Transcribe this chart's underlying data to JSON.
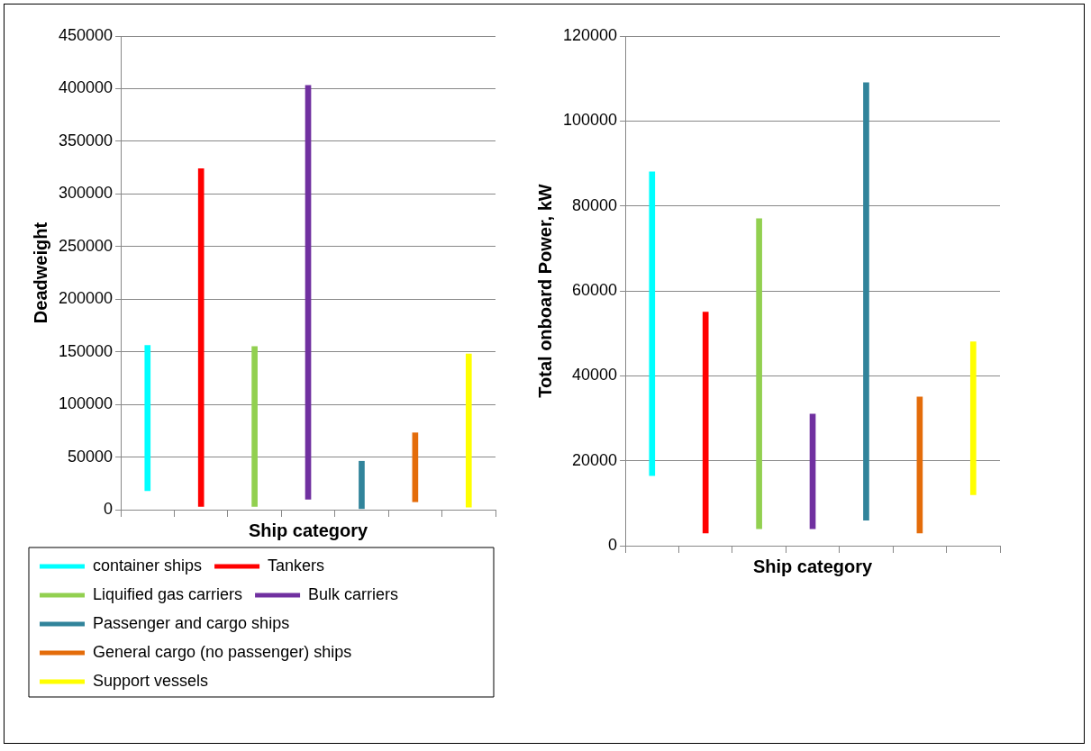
{
  "chart_data": [
    {
      "type": "bar",
      "stacked": true,
      "xlabel": "Ship category",
      "ylabel": "Deadweight",
      "ylim": [
        0,
        450000
      ],
      "yticks": [
        0,
        50000,
        100000,
        150000,
        200000,
        250000,
        300000,
        350000,
        400000,
        450000
      ],
      "grid": "y",
      "tick_labels": "y",
      "legend": "bottom",
      "categories": [
        null,
        null,
        null,
        null,
        null,
        null,
        null
      ],
      "series": [
        {
          "name": "container ships",
          "color": "#00ffff",
          "base": [
            18000,
            null,
            null,
            null,
            null,
            null,
            null
          ],
          "values": [
            138000,
            null,
            null,
            null,
            null,
            null,
            null
          ]
        },
        {
          "name": "Tankers",
          "color": "#ff0000",
          "base": [
            null,
            3000,
            null,
            null,
            null,
            null,
            null
          ],
          "values": [
            null,
            321000,
            null,
            null,
            null,
            null,
            null
          ]
        },
        {
          "name": "Liquified gas carriers",
          "color": "#92d050",
          "base": [
            null,
            null,
            3000,
            null,
            null,
            null,
            null
          ],
          "values": [
            null,
            null,
            152000,
            null,
            null,
            null,
            null
          ]
        },
        {
          "name": "Bulk carriers",
          "color": "#7030a0",
          "base": [
            null,
            null,
            null,
            10000,
            null,
            null,
            null
          ],
          "values": [
            null,
            null,
            null,
            393000,
            null,
            null,
            null
          ]
        },
        {
          "name": "Passenger and cargo ships",
          "color": "#31849b",
          "base": [
            null,
            null,
            null,
            null,
            1000,
            null,
            null
          ],
          "values": [
            null,
            null,
            null,
            null,
            45000,
            null,
            null
          ]
        },
        {
          "name": "General cargo (no passenger) ships",
          "color": "#e46c0a",
          "base": [
            null,
            null,
            null,
            null,
            null,
            7500,
            null
          ],
          "values": [
            null,
            null,
            null,
            null,
            null,
            65500,
            null
          ]
        },
        {
          "name": "Support vessels",
          "color": "#ffff00",
          "base": [
            null,
            null,
            null,
            null,
            null,
            null,
            2500
          ],
          "values": [
            null,
            null,
            null,
            null,
            null,
            null,
            145500
          ]
        }
      ]
    },
    {
      "type": "bar",
      "stacked": true,
      "xlabel": "Ship category",
      "ylabel": "Total onboard Power, kW",
      "ylim": [
        0,
        120000
      ],
      "yticks": [
        0,
        20000,
        40000,
        60000,
        80000,
        100000,
        120000
      ],
      "grid": "y",
      "tick_labels": "y",
      "categories": [
        null,
        null,
        null,
        null,
        null,
        null,
        null
      ],
      "series": [
        {
          "color": "#00ffff",
          "base": [
            16500,
            null,
            null,
            null,
            null,
            null,
            null
          ],
          "values": [
            71500,
            null,
            null,
            null,
            null,
            null,
            null
          ]
        },
        {
          "color": "#ff0000",
          "base": [
            null,
            3000,
            null,
            null,
            null,
            null,
            null
          ],
          "values": [
            null,
            52000,
            null,
            null,
            null,
            null,
            null
          ]
        },
        {
          "color": "#92d050",
          "base": [
            null,
            null,
            4000,
            null,
            null,
            null,
            null
          ],
          "values": [
            null,
            null,
            73000,
            null,
            null,
            null,
            null
          ]
        },
        {
          "color": "#7030a0",
          "base": [
            null,
            null,
            null,
            4000,
            null,
            null,
            null
          ],
          "values": [
            null,
            null,
            null,
            27000,
            null,
            null,
            null
          ]
        },
        {
          "color": "#31849b",
          "base": [
            null,
            null,
            null,
            null,
            6000,
            null,
            null
          ],
          "values": [
            null,
            null,
            null,
            null,
            103000,
            null,
            null
          ]
        },
        {
          "color": "#e46c0a",
          "base": [
            null,
            null,
            null,
            null,
            null,
            3000,
            null
          ],
          "values": [
            null,
            null,
            null,
            null,
            null,
            32000,
            null
          ]
        },
        {
          "color": "#ffff00",
          "base": [
            null,
            null,
            null,
            null,
            null,
            null,
            12000
          ],
          "values": [
            null,
            null,
            null,
            null,
            null,
            null,
            36000
          ]
        }
      ]
    }
  ]
}
